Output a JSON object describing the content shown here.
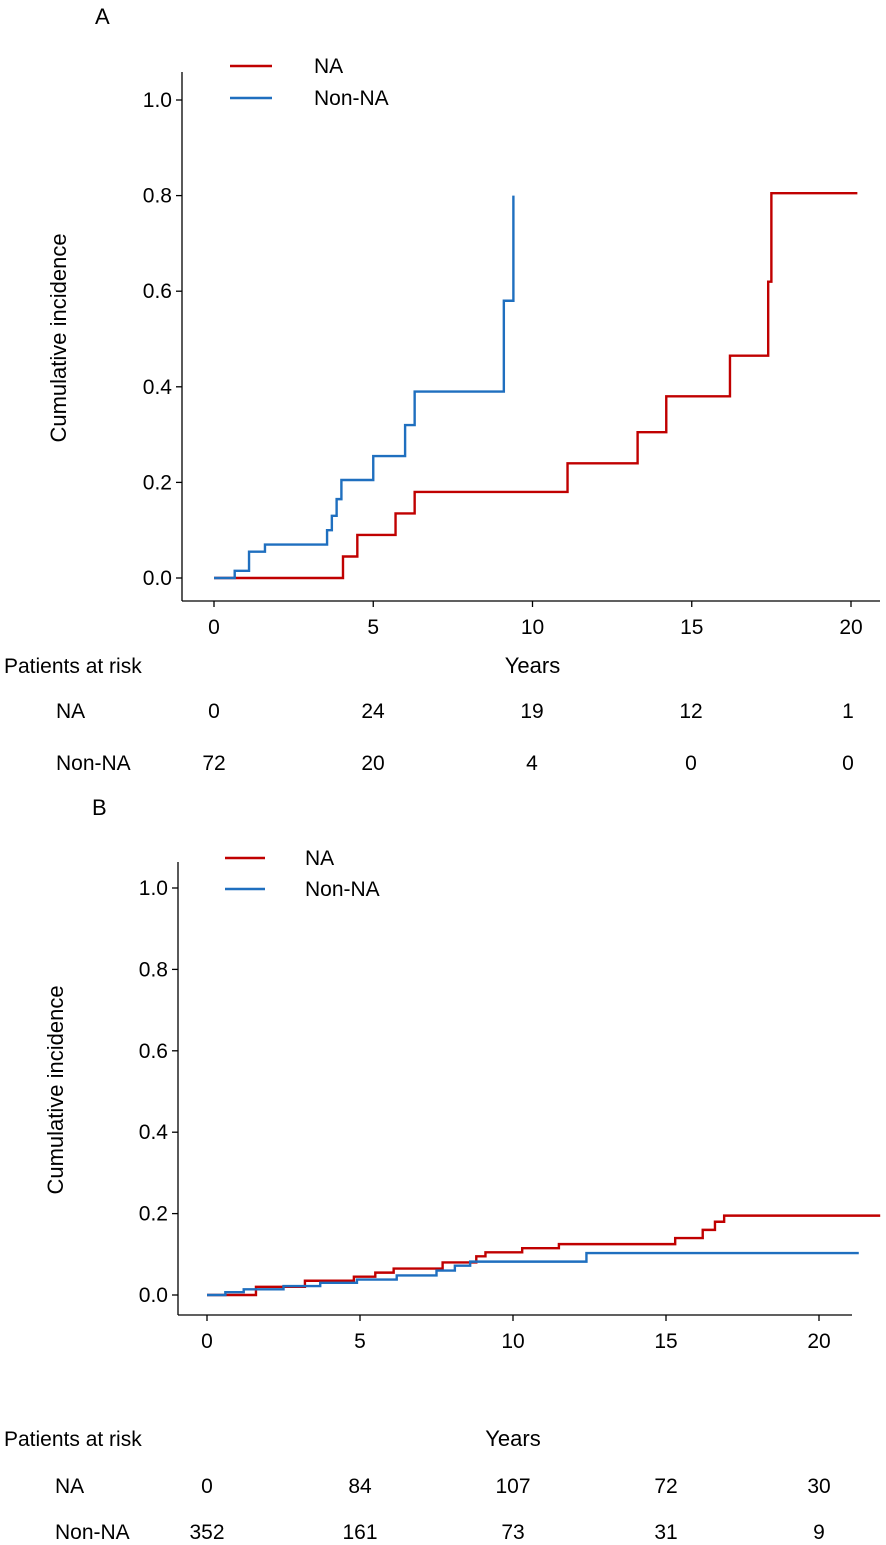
{
  "colors": {
    "na": "#c00000",
    "non_na": "#1f6fbf"
  },
  "chart_data": [
    {
      "panel": "A",
      "type": "line",
      "step": true,
      "xlabel": "Years",
      "ylabel": "Cumulative incidence",
      "xlim": [
        -1,
        20.8
      ],
      "ylim": [
        -0.045,
        1.06
      ],
      "xticks": [
        0,
        5,
        10,
        15,
        20
      ],
      "yticks": [
        "0.0",
        "0.2",
        "0.4",
        "0.6",
        "0.8",
        "1.0"
      ],
      "ytick_values": [
        0.0,
        0.2,
        0.4,
        0.6,
        0.8,
        1.0
      ],
      "legend": [
        "NA",
        "Non-NA"
      ],
      "series": [
        {
          "name": "NA",
          "color_key": "na",
          "x": [
            0,
            4.05,
            4.5,
            5.7,
            6.3,
            11.1,
            13.3,
            14.2,
            16.2,
            17.4,
            17.5,
            20.2
          ],
          "y": [
            0,
            0.045,
            0.09,
            0.135,
            0.18,
            0.24,
            0.305,
            0.38,
            0.465,
            0.62,
            0.805,
            0.805
          ]
        },
        {
          "name": "Non-NA",
          "color_key": "non_na",
          "x": [
            0,
            0.65,
            1.1,
            1.6,
            3.55,
            3.7,
            3.85,
            4.0,
            5.0,
            6.0,
            6.3,
            9.1,
            9.4,
            9.4
          ],
          "y": [
            0,
            0.015,
            0.055,
            0.07,
            0.1,
            0.13,
            0.165,
            0.205,
            0.255,
            0.32,
            0.39,
            0.58,
            0.58,
            0.8
          ]
        }
      ],
      "risk_table": {
        "title": "Patients at risk",
        "rows": [
          {
            "name": "NA",
            "values": [
              "0",
              "24",
              "19",
              "12",
              "1"
            ]
          },
          {
            "name": "Non-NA",
            "values": [
              "72",
              "20",
              "4",
              "0",
              "0"
            ]
          }
        ]
      }
    },
    {
      "panel": "B",
      "type": "line",
      "step": true,
      "xlabel": "Years",
      "ylabel": "Cumulative incidence",
      "xlim": [
        -1,
        21
      ],
      "ylim": [
        -0.045,
        1.06
      ],
      "xticks": [
        0,
        5,
        10,
        15,
        20
      ],
      "yticks": [
        "0.0",
        "0.2",
        "0.4",
        "0.6",
        "0.8",
        "1.0"
      ],
      "ytick_values": [
        0.0,
        0.2,
        0.4,
        0.6,
        0.8,
        1.0
      ],
      "legend": [
        "NA",
        "Non-NA"
      ],
      "series": [
        {
          "name": "NA",
          "color_key": "na",
          "x": [
            0,
            1.6,
            3.2,
            4.8,
            5.5,
            6.1,
            7.7,
            8.8,
            9.1,
            10.3,
            11.5,
            15.3,
            16.2,
            16.6,
            16.9,
            22
          ],
          "y": [
            0,
            0.02,
            0.035,
            0.045,
            0.055,
            0.065,
            0.08,
            0.095,
            0.105,
            0.115,
            0.125,
            0.14,
            0.16,
            0.18,
            0.195,
            0.195
          ]
        },
        {
          "name": "Non-NA",
          "color_key": "non_na",
          "x": [
            0,
            0.6,
            1.2,
            2.5,
            3.7,
            4.9,
            6.2,
            7.5,
            8.1,
            8.6,
            12.4,
            21.3
          ],
          "y": [
            0,
            0.007,
            0.014,
            0.022,
            0.03,
            0.038,
            0.048,
            0.06,
            0.072,
            0.082,
            0.103,
            0.103
          ]
        }
      ],
      "risk_table": {
        "title": "Patients at risk",
        "rows": [
          {
            "name": "NA",
            "values": [
              "0",
              "84",
              "107",
              "72",
              "30"
            ]
          },
          {
            "name": "Non-NA",
            "values": [
              "352",
              "161",
              "73",
              "31",
              "9"
            ]
          }
        ]
      }
    }
  ]
}
